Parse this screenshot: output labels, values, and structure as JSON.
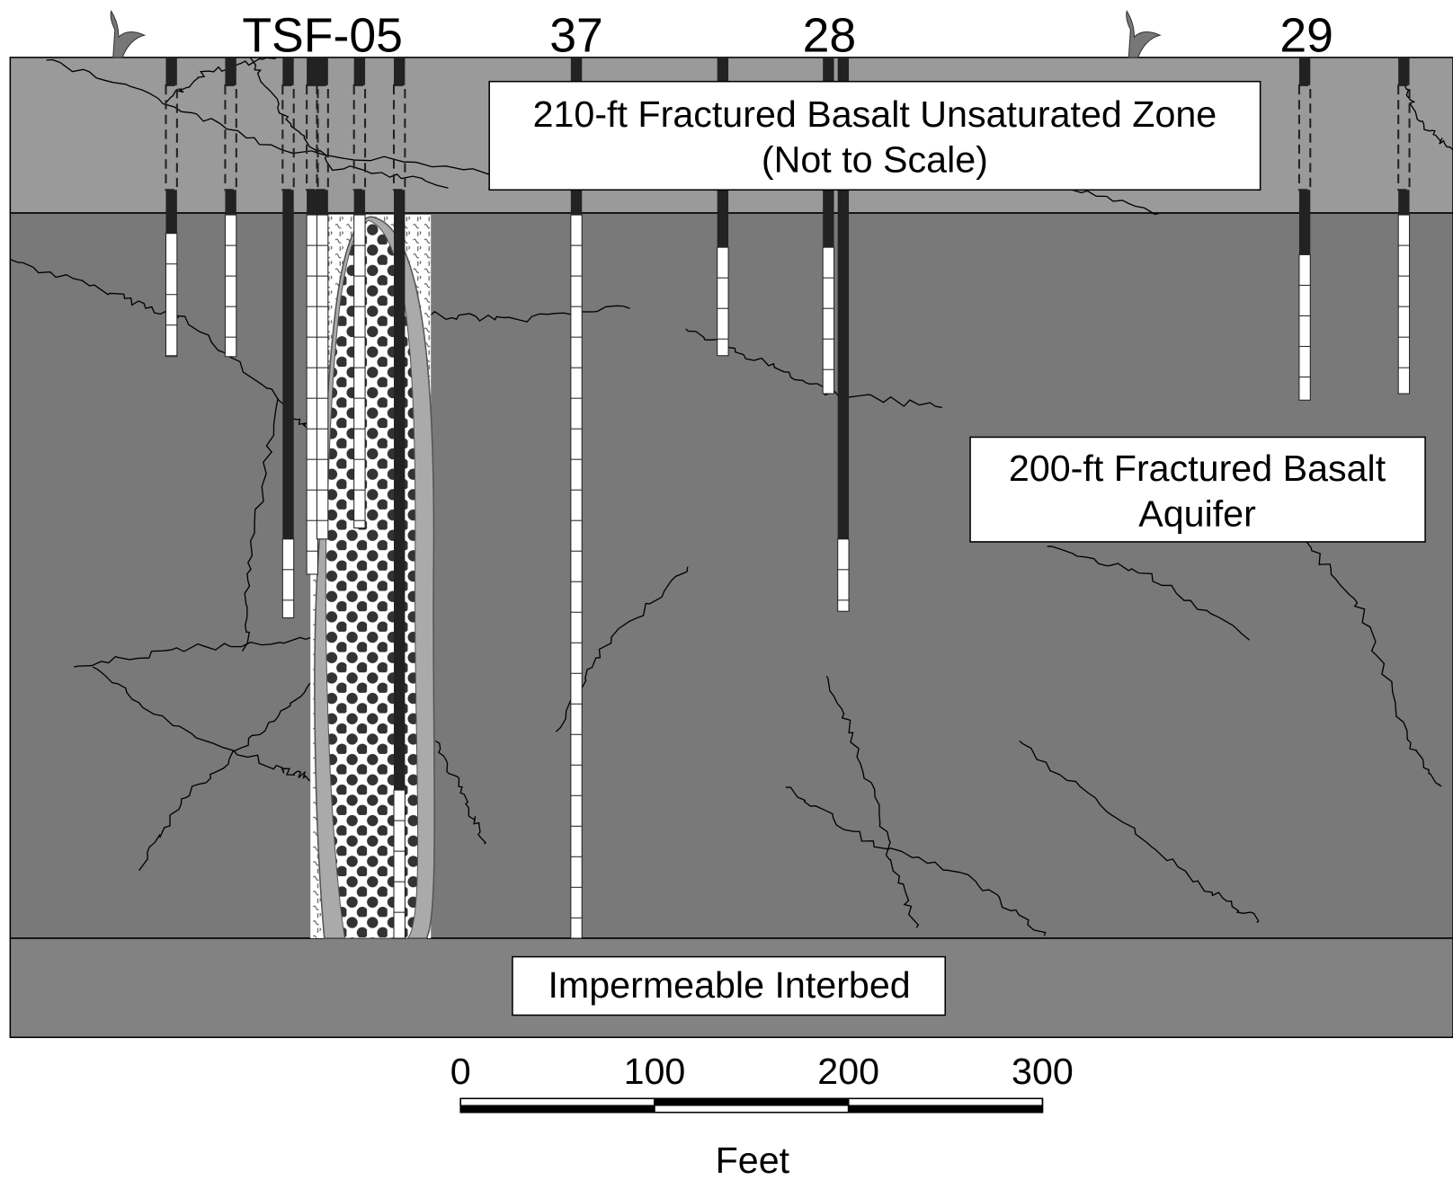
{
  "well_labels": [
    "TSF-05",
    "37",
    "28",
    "29"
  ],
  "zone_labels": {
    "unsaturated": [
      "210-ft Fractured Basalt Unsaturated Zone",
      "(Not to Scale)"
    ],
    "aquifer": [
      "200-ft Fractured Basalt",
      "Aquifer"
    ],
    "interbed": [
      "Impermeable Interbed"
    ]
  },
  "scale_bar": {
    "ticks": [
      0,
      100,
      200,
      300
    ],
    "unit": "Feet"
  }
}
